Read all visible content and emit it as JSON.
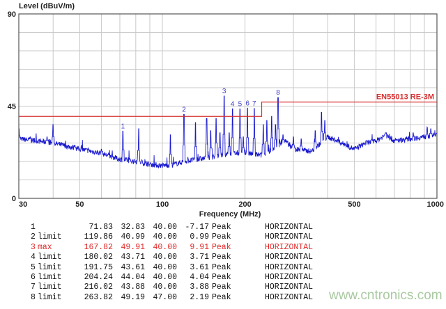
{
  "chart_data": {
    "type": "line",
    "ylabel": "Level (dBuV/m)",
    "xlabel": "Frequency (MHz)",
    "xscale": "log",
    "xlim": [
      30,
      1000
    ],
    "ylim": [
      0,
      90
    ],
    "x_ticks": [
      30,
      50,
      100,
      200,
      500,
      1000
    ],
    "y_ticks": [
      0,
      45,
      90
    ],
    "grid": true,
    "colors": {
      "trace": "#1a1ad0",
      "limit": "#d83030",
      "marker": "#4040c0",
      "grid": "#c8c8c8"
    },
    "limit_line": {
      "name": "EN55013 RE-3M",
      "segments": [
        {
          "from": 30,
          "to": 230,
          "level": 40
        },
        {
          "from": 230,
          "to": 1000,
          "level": 47
        }
      ]
    },
    "noise_floor": [
      [
        30,
        29
      ],
      [
        35,
        28
      ],
      [
        40,
        27
      ],
      [
        50,
        24
      ],
      [
        60,
        22
      ],
      [
        70,
        19
      ],
      [
        80,
        18
      ],
      [
        90,
        16.5
      ],
      [
        100,
        16
      ],
      [
        110,
        16.5
      ],
      [
        120,
        18
      ],
      [
        150,
        20
      ],
      [
        180,
        22
      ],
      [
        200,
        22
      ],
      [
        230,
        21
      ],
      [
        260,
        25
      ],
      [
        280,
        28
      ],
      [
        300,
        24
      ],
      [
        350,
        23
      ],
      [
        400,
        30
      ],
      [
        450,
        27
      ],
      [
        500,
        24
      ],
      [
        550,
        27
      ],
      [
        600,
        28
      ],
      [
        650,
        31
      ],
      [
        700,
        28
      ],
      [
        800,
        29
      ],
      [
        1000,
        31
      ]
    ],
    "spikes": [
      [
        30,
        34
      ],
      [
        33,
        30
      ],
      [
        38,
        30
      ],
      [
        40,
        36
      ],
      [
        48,
        26
      ],
      [
        60,
        24
      ],
      [
        71.83,
        32.83
      ],
      [
        82,
        34
      ],
      [
        107,
        31
      ],
      [
        119.86,
        40.99
      ],
      [
        132,
        37
      ],
      [
        145,
        39
      ],
      [
        150,
        33
      ],
      [
        157,
        39
      ],
      [
        162,
        32
      ],
      [
        167.82,
        49.91
      ],
      [
        175,
        32
      ],
      [
        180.02,
        43.71
      ],
      [
        191.75,
        43.61
      ],
      [
        197,
        30
      ],
      [
        204.24,
        44.04
      ],
      [
        216.02,
        43.88
      ],
      [
        233,
        36
      ],
      [
        240,
        38
      ],
      [
        250,
        40
      ],
      [
        258,
        36
      ],
      [
        263.82,
        49.19
      ],
      [
        275,
        31
      ],
      [
        300,
        30
      ],
      [
        320,
        29
      ],
      [
        360,
        33
      ],
      [
        380,
        42
      ],
      [
        390,
        38
      ],
      [
        650,
        32
      ],
      [
        820,
        32
      ],
      [
        920,
        33
      ],
      [
        950,
        34
      ]
    ],
    "markers": [
      {
        "label": "1",
        "freq": 71.83,
        "level": 32.83
      },
      {
        "label": "2",
        "freq": 119.86,
        "level": 40.99
      },
      {
        "label": "3",
        "freq": 167.82,
        "level": 49.91
      },
      {
        "label": "4",
        "freq": 180.02,
        "level": 43.71
      },
      {
        "label": "5",
        "freq": 191.75,
        "level": 43.61
      },
      {
        "label": "6",
        "freq": 204.24,
        "level": 44.04
      },
      {
        "label": "7",
        "freq": 216.02,
        "level": 43.88
      },
      {
        "label": "8",
        "freq": 263.82,
        "level": 49.19
      }
    ]
  },
  "table": {
    "rows": [
      {
        "id": "1",
        "tag": "",
        "freq": "71.83",
        "level": "32.83",
        "limit": "40.00",
        "margin": "-7.17",
        "det": "Peak",
        "pol": "HORIZONTAL"
      },
      {
        "id": "2",
        "tag": "limit",
        "freq": "119.86",
        "level": "40.99",
        "limit": "40.00",
        "margin": "0.99",
        "det": "Peak",
        "pol": "HORIZONTAL"
      },
      {
        "id": "3",
        "tag": "max",
        "freq": "167.82",
        "level": "49.91",
        "limit": "40.00",
        "margin": "9.91",
        "det": "Peak",
        "pol": "HORIZONTAL"
      },
      {
        "id": "4",
        "tag": "limit",
        "freq": "180.02",
        "level": "43.71",
        "limit": "40.00",
        "margin": "3.71",
        "det": "Peak",
        "pol": "HORIZONTAL"
      },
      {
        "id": "5",
        "tag": "limit",
        "freq": "191.75",
        "level": "43.61",
        "limit": "40.00",
        "margin": "3.61",
        "det": "Peak",
        "pol": "HORIZONTAL"
      },
      {
        "id": "6",
        "tag": "limit",
        "freq": "204.24",
        "level": "44.04",
        "limit": "40.00",
        "margin": "4.04",
        "det": "Peak",
        "pol": "HORIZONTAL"
      },
      {
        "id": "7",
        "tag": "limit",
        "freq": "216.02",
        "level": "43.88",
        "limit": "40.00",
        "margin": "3.88",
        "det": "Peak",
        "pol": "HORIZONTAL"
      },
      {
        "id": "8",
        "tag": "limit",
        "freq": "263.82",
        "level": "49.19",
        "limit": "47.00",
        "margin": "2.19",
        "det": "Peak",
        "pol": "HORIZONTAL"
      }
    ],
    "highlight_color": "#e02828"
  },
  "watermark": "www.cntronics.com"
}
